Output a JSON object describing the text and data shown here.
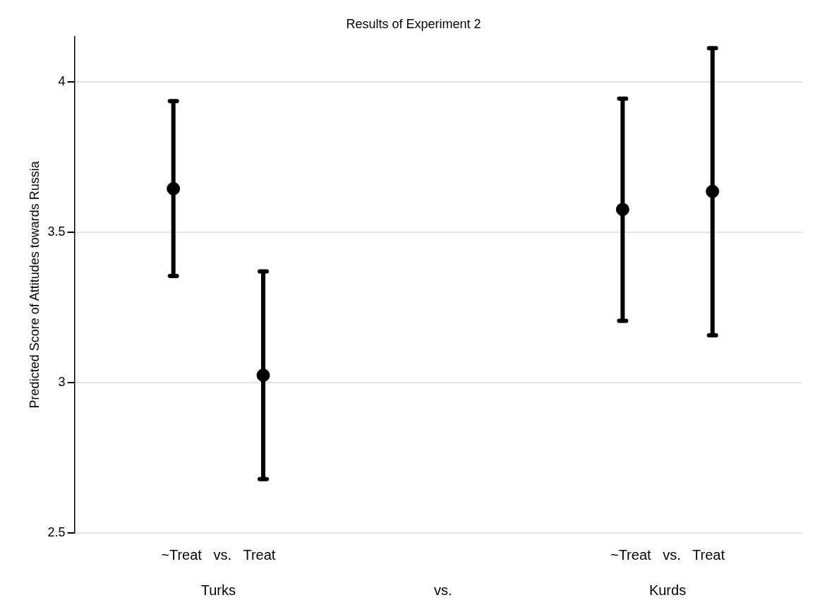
{
  "chart_data": {
    "type": "scatter",
    "title": "Results of Experiment 2",
    "ylabel": "Predicted Score of Attitudes towards Russia",
    "categories": [
      null,
      null,
      null,
      null,
      null,
      null,
      null
    ],
    "series": [
      {
        "color": "#000000",
        "values": [
          3.644,
          3.024,
          null,
          null,
          null,
          3.575,
          3.635
        ],
        "errors": [
          [
            3.354,
            3.935
          ],
          [
            2.679,
            3.369
          ],
          null,
          null,
          null,
          [
            3.205,
            3.943
          ],
          [
            3.157,
            4.111
          ]
        ]
      }
    ],
    "ylim": [
      2.5,
      4.15
    ],
    "yticks": [
      2.5,
      3,
      3.5,
      4
    ],
    "grid": "y",
    "marker": "circle",
    "legend": false,
    "annotations": [
      "~Treat   vs.   Treat",
      "~Treat   vs.   Treat",
      "Turks",
      "vs.",
      "Kurds"
    ]
  }
}
